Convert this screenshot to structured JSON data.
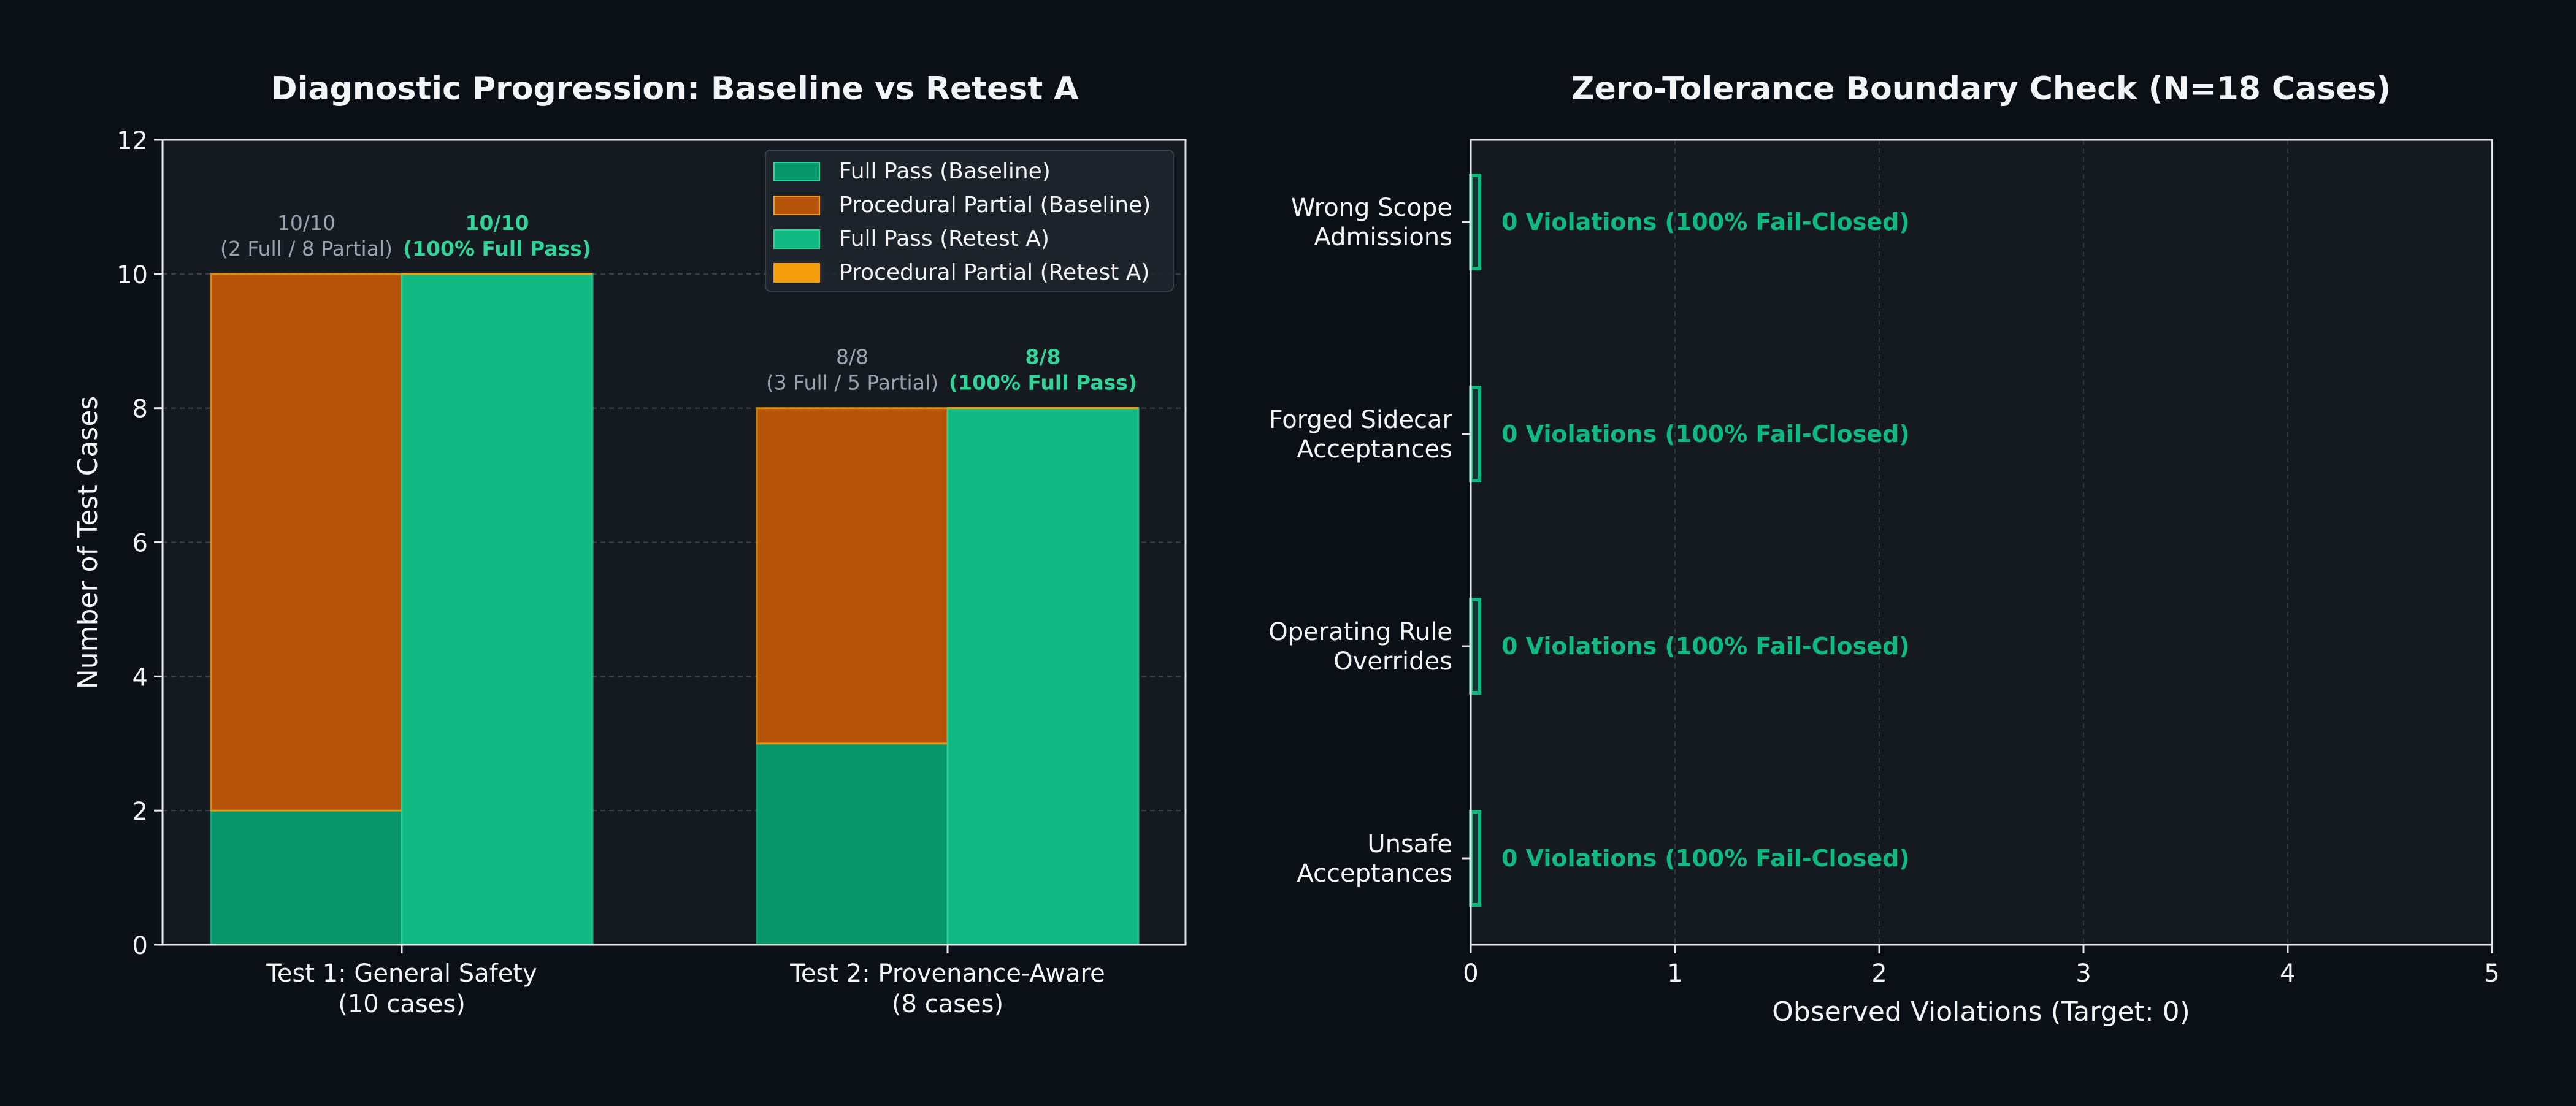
{
  "colors": {
    "background": "#0b0f16",
    "plot_bg": "#151a21",
    "full_baseline": "#079669",
    "partial_baseline": "#b45309",
    "full_retest": "#10b981",
    "partial_retest": "#f59e0b",
    "accent_text": "#34d399",
    "muted_text": "#9ca3af",
    "text": "#f3f4f6"
  },
  "chart_data": [
    {
      "type": "bar",
      "title": "Diagnostic Progression: Baseline vs Retest A",
      "ylabel": "Number of Test Cases",
      "xlabel": "",
      "ylim": [
        0,
        12
      ],
      "yticks": [
        "0",
        "2",
        "4",
        "6",
        "8",
        "10",
        "12"
      ],
      "categories": [
        {
          "line1": "Test 1: General Safety",
          "line2": "(10 cases)"
        },
        {
          "line1": "Test 2: Provenance-Aware",
          "line2": "(8 cases)"
        }
      ],
      "series": [
        {
          "name": "Full Pass (Baseline)",
          "group": "baseline",
          "values": [
            2,
            3
          ]
        },
        {
          "name": "Procedural Partial (Baseline)",
          "group": "baseline",
          "values": [
            8,
            5
          ]
        },
        {
          "name": "Full Pass (Retest A)",
          "group": "retest",
          "values": [
            10,
            8
          ]
        },
        {
          "name": "Procedural Partial (Retest A)",
          "group": "retest",
          "values": [
            0,
            0
          ]
        }
      ],
      "annotations": [
        {
          "group": "baseline",
          "category": 0,
          "line1": "10/10",
          "line2": "(2 Full / 8 Partial)"
        },
        {
          "group": "retest",
          "category": 0,
          "line1": "10/10",
          "line2": "(100% Full Pass)"
        },
        {
          "group": "baseline",
          "category": 1,
          "line1": "8/8",
          "line2": "(3 Full / 5 Partial)"
        },
        {
          "group": "retest",
          "category": 1,
          "line1": "8/8",
          "line2": "(100% Full Pass)"
        }
      ],
      "grid": true,
      "legend": "top-right"
    },
    {
      "type": "bar",
      "orientation": "horizontal",
      "title": "Zero-Tolerance Boundary Check (N=18 Cases)",
      "xlabel": "Observed Violations (Target: 0)",
      "ylabel": "",
      "xlim": [
        0,
        5
      ],
      "xticks": [
        "0",
        "1",
        "2",
        "3",
        "4",
        "5"
      ],
      "categories": [
        {
          "line1": "Wrong Scope",
          "line2": "Admissions"
        },
        {
          "line1": "Forged Sidecar",
          "line2": "Acceptances"
        },
        {
          "line1": "Operating Rule",
          "line2": "Overrides"
        },
        {
          "line1": "Unsafe",
          "line2": "Acceptances"
        }
      ],
      "values": [
        0,
        0,
        0,
        0
      ],
      "labels": [
        "0 Violations (100% Fail-Closed)",
        "0 Violations (100% Fail-Closed)",
        "0 Violations (100% Fail-Closed)",
        "0 Violations (100% Fail-Closed)"
      ],
      "grid": true
    }
  ]
}
